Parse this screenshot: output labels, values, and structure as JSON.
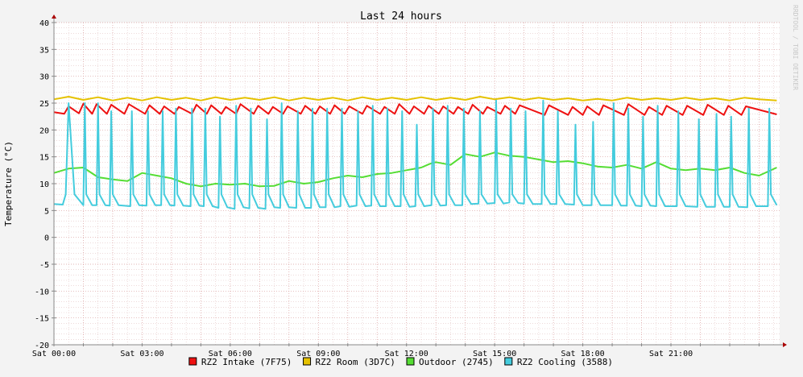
{
  "watermark": "RRDTOOL / TOBI OETIKER",
  "chart_data": {
    "type": "line",
    "title": "Last 24 hours",
    "ylabel": "Temperature (°C)",
    "xlabel": "",
    "ylim": [
      -20,
      40
    ],
    "xlim": [
      0,
      24.7
    ],
    "yticks": [
      "-20",
      "-15",
      "-10",
      "-5",
      "0",
      "5",
      "10",
      "15",
      "20",
      "25",
      "30",
      "35",
      "40"
    ],
    "xticks": [
      {
        "at": 0,
        "label": "Sat 00:00"
      },
      {
        "at": 3,
        "label": "Sat 03:00"
      },
      {
        "at": 6,
        "label": "Sat 06:00"
      },
      {
        "at": 9,
        "label": "Sat 09:00"
      },
      {
        "at": 12,
        "label": "Sat 12:00"
      },
      {
        "at": 15,
        "label": "Sat 15:00"
      },
      {
        "at": 18,
        "label": "Sat 18:00"
      },
      {
        "at": 21,
        "label": "Sat 21:00"
      }
    ],
    "grid": true,
    "legend_position": "bottom",
    "series": [
      {
        "name": "RZ2 Intake (7F75)",
        "color": "#ee1111",
        "x": [
          0,
          0.35,
          0.5,
          0.85,
          1.0,
          1.3,
          1.45,
          1.8,
          1.95,
          2.4,
          2.55,
          3.1,
          3.25,
          3.6,
          3.75,
          4.1,
          4.25,
          4.7,
          4.85,
          5.2,
          5.35,
          5.7,
          5.85,
          6.2,
          6.35,
          6.8,
          6.95,
          7.3,
          7.45,
          7.8,
          7.95,
          8.4,
          8.55,
          8.9,
          9.05,
          9.4,
          9.55,
          9.9,
          10.05,
          10.5,
          10.65,
          11.1,
          11.25,
          11.6,
          11.75,
          12.1,
          12.25,
          12.6,
          12.75,
          13.1,
          13.25,
          13.6,
          13.75,
          14.1,
          14.25,
          14.6,
          14.75,
          15.2,
          15.35,
          15.7,
          15.85,
          16.7,
          16.85,
          17.5,
          17.65,
          18.0,
          18.15,
          18.55,
          18.7,
          19.4,
          19.55,
          20.1,
          20.25,
          20.7,
          20.85,
          21.4,
          21.55,
          22.1,
          22.25,
          22.8,
          22.95,
          23.4,
          23.55,
          24.6
        ],
        "values": [
          23.3,
          23.0,
          24.4,
          23.1,
          24.9,
          23.0,
          24.8,
          23.0,
          24.7,
          23.0,
          24.8,
          23.0,
          24.6,
          23.0,
          24.4,
          23.0,
          24.3,
          23.0,
          24.7,
          23.0,
          24.6,
          23.0,
          24.3,
          23.0,
          24.8,
          23.0,
          24.5,
          23.0,
          24.3,
          23.0,
          24.4,
          23.0,
          24.5,
          23.0,
          24.4,
          23.0,
          24.6,
          23.0,
          24.4,
          23.0,
          24.5,
          23.0,
          24.3,
          23.0,
          24.8,
          23.0,
          24.4,
          23.0,
          24.5,
          23.0,
          24.4,
          23.0,
          24.3,
          23.0,
          24.7,
          23.0,
          24.3,
          23.0,
          24.5,
          23.0,
          24.6,
          22.8,
          24.6,
          22.8,
          24.3,
          22.8,
          24.4,
          22.8,
          24.6,
          22.8,
          24.8,
          22.8,
          24.3,
          22.8,
          24.5,
          22.8,
          24.5,
          22.8,
          24.7,
          22.8,
          24.5,
          22.8,
          24.4,
          22.9
        ]
      },
      {
        "name": "RZ2 Room (3D7C)",
        "color": "#e6c200",
        "x": [
          0,
          0.5,
          1.0,
          1.5,
          2.0,
          2.5,
          3.0,
          3.5,
          4.0,
          4.5,
          5.0,
          5.5,
          6.0,
          6.5,
          7.0,
          7.5,
          8.0,
          8.5,
          9.0,
          9.5,
          10.0,
          10.5,
          11.0,
          11.5,
          12.0,
          12.5,
          13.0,
          13.5,
          14.0,
          14.5,
          15.0,
          15.5,
          16.0,
          16.5,
          17.0,
          17.5,
          18.0,
          18.5,
          19.0,
          19.5,
          20.0,
          20.5,
          21.0,
          21.5,
          22.0,
          22.5,
          23.0,
          23.5,
          24.0,
          24.6
        ],
        "values": [
          25.7,
          26.2,
          25.6,
          26.1,
          25.5,
          26.0,
          25.5,
          26.1,
          25.6,
          26.0,
          25.5,
          26.1,
          25.6,
          26.0,
          25.6,
          26.1,
          25.5,
          26.0,
          25.6,
          26.0,
          25.5,
          26.1,
          25.6,
          26.0,
          25.6,
          26.1,
          25.6,
          26.0,
          25.6,
          26.2,
          25.7,
          26.1,
          25.6,
          26.0,
          25.6,
          25.9,
          25.5,
          25.8,
          25.5,
          26.0,
          25.6,
          25.9,
          25.6,
          26.0,
          25.6,
          25.9,
          25.5,
          26.0,
          25.7,
          25.5
        ]
      },
      {
        "name": "Outdoor (2745)",
        "color": "#55dd33",
        "x": [
          0,
          0.5,
          1.0,
          1.5,
          2.0,
          2.5,
          3.0,
          3.5,
          4.0,
          4.5,
          5.0,
          5.5,
          6.0,
          6.5,
          7.0,
          7.5,
          8.0,
          8.5,
          9.0,
          9.5,
          10.0,
          10.5,
          11.0,
          11.5,
          12.0,
          12.5,
          12.8,
          13.0,
          13.5,
          14.0,
          14.5,
          15.0,
          15.5,
          16.0,
          16.5,
          17.0,
          17.5,
          18.0,
          18.5,
          19.0,
          19.5,
          20.0,
          20.5,
          21.0,
          21.5,
          22.0,
          22.5,
          23.0,
          23.5,
          24.0,
          24.6
        ],
        "values": [
          12.0,
          12.8,
          13.0,
          11.2,
          10.8,
          10.5,
          12.0,
          11.5,
          11.0,
          10.0,
          9.5,
          10.0,
          9.8,
          10.0,
          9.5,
          9.6,
          10.5,
          10.0,
          10.3,
          11.0,
          11.5,
          11.2,
          11.8,
          12.0,
          12.5,
          13.0,
          13.7,
          14.0,
          13.5,
          15.5,
          15.0,
          15.8,
          15.2,
          15.0,
          14.5,
          14.0,
          14.2,
          13.8,
          13.2,
          13.0,
          13.5,
          12.8,
          14.0,
          12.8,
          12.5,
          12.8,
          12.5,
          13.0,
          12.0,
          11.5,
          13.0
        ]
      },
      {
        "name": "RZ2 Cooling (3588)",
        "color": "#44ccdd",
        "x": [
          0,
          0.3,
          0.4,
          0.5,
          0.7,
          1.0,
          1.05,
          1.1,
          1.3,
          1.45,
          1.5,
          1.55,
          1.75,
          1.9,
          1.95,
          2.0,
          2.2,
          2.6,
          2.65,
          2.7,
          2.9,
          3.15,
          3.2,
          3.25,
          3.45,
          3.65,
          3.7,
          3.75,
          3.95,
          4.1,
          4.15,
          4.2,
          4.4,
          4.65,
          4.7,
          4.75,
          4.95,
          5.1,
          5.15,
          5.2,
          5.4,
          5.6,
          5.65,
          5.7,
          5.9,
          6.15,
          6.2,
          6.25,
          6.45,
          6.65,
          6.7,
          6.75,
          6.95,
          7.2,
          7.25,
          7.3,
          7.5,
          7.7,
          7.75,
          7.8,
          8.0,
          8.25,
          8.3,
          8.35,
          8.55,
          8.75,
          8.8,
          8.85,
          9.05,
          9.25,
          9.3,
          9.35,
          9.55,
          9.75,
          9.8,
          9.85,
          10.05,
          10.3,
          10.35,
          10.4,
          10.6,
          10.8,
          10.85,
          10.9,
          11.1,
          11.3,
          11.35,
          11.4,
          11.6,
          11.8,
          11.85,
          11.9,
          12.1,
          12.3,
          12.35,
          12.4,
          12.6,
          12.85,
          12.9,
          12.95,
          13.15,
          13.35,
          13.4,
          13.45,
          13.65,
          13.9,
          13.95,
          14.0,
          14.2,
          14.45,
          14.5,
          14.55,
          14.75,
          15.0,
          15.05,
          15.1,
          15.3,
          15.5,
          15.55,
          15.6,
          15.8,
          16.0,
          16.05,
          16.1,
          16.3,
          16.6,
          16.65,
          16.7,
          16.9,
          17.1,
          17.15,
          17.2,
          17.4,
          17.7,
          17.75,
          17.8,
          18.0,
          18.3,
          18.35,
          18.4,
          18.6,
          19.0,
          19.05,
          19.1,
          19.3,
          19.5,
          19.55,
          19.6,
          19.8,
          20.0,
          20.05,
          20.1,
          20.3,
          20.5,
          20.55,
          20.6,
          20.8,
          21.2,
          21.25,
          21.3,
          21.5,
          21.9,
          21.95,
          22.0,
          22.2,
          22.5,
          22.55,
          22.6,
          22.8,
          23.0,
          23.05,
          23.1,
          23.3,
          23.6,
          23.65,
          23.7,
          23.9,
          24.3,
          24.35,
          24.4,
          24.6
        ],
        "values": [
          6.2,
          6.1,
          8.0,
          25.0,
          8.0,
          6.0,
          25.0,
          8.0,
          6.0,
          6.0,
          25.0,
          8.0,
          6.0,
          5.9,
          23.5,
          8.0,
          6.0,
          5.8,
          23.5,
          8.0,
          6.0,
          5.9,
          23.5,
          8.0,
          6.0,
          6.0,
          23.5,
          8.0,
          6.0,
          5.9,
          24.0,
          8.0,
          5.9,
          5.8,
          24.0,
          8.0,
          5.9,
          5.8,
          24.0,
          8.0,
          5.8,
          5.5,
          22.5,
          8.0,
          5.6,
          5.3,
          24.5,
          8.0,
          5.6,
          5.4,
          24.0,
          8.0,
          5.5,
          5.3,
          22.0,
          8.0,
          5.6,
          5.5,
          25.0,
          8.0,
          5.6,
          5.5,
          23.5,
          8.0,
          5.5,
          5.5,
          24.0,
          8.0,
          5.6,
          5.6,
          24.0,
          8.0,
          5.6,
          5.8,
          24.0,
          8.0,
          5.7,
          5.9,
          23.5,
          8.0,
          5.8,
          5.9,
          24.5,
          8.0,
          5.8,
          5.8,
          24.0,
          8.0,
          5.8,
          5.8,
          23.5,
          8.0,
          5.7,
          5.8,
          21.0,
          8.0,
          5.8,
          6.0,
          24.0,
          8.0,
          5.9,
          6.0,
          24.5,
          8.0,
          6.0,
          6.0,
          24.0,
          8.0,
          6.2,
          6.3,
          23.5,
          8.0,
          6.3,
          6.4,
          25.5,
          8.0,
          6.3,
          6.5,
          24.0,
          8.0,
          6.4,
          6.3,
          23.5,
          8.0,
          6.2,
          6.2,
          25.5,
          8.0,
          6.2,
          6.2,
          23.5,
          8.0,
          6.2,
          6.1,
          21.0,
          8.0,
          6.0,
          6.0,
          21.5,
          8.0,
          6.0,
          6.0,
          25.0,
          8.0,
          5.9,
          5.9,
          24.0,
          8.0,
          5.9,
          5.8,
          22.5,
          8.0,
          5.9,
          5.8,
          24.5,
          8.0,
          5.8,
          5.8,
          23.5,
          8.0,
          5.8,
          5.7,
          22.0,
          8.0,
          5.7,
          5.7,
          23.0,
          8.0,
          5.7,
          5.7,
          22.5,
          8.0,
          5.7,
          5.6,
          24.0,
          8.0,
          5.8,
          5.8,
          24.0,
          8.0,
          6.0
        ]
      }
    ]
  }
}
